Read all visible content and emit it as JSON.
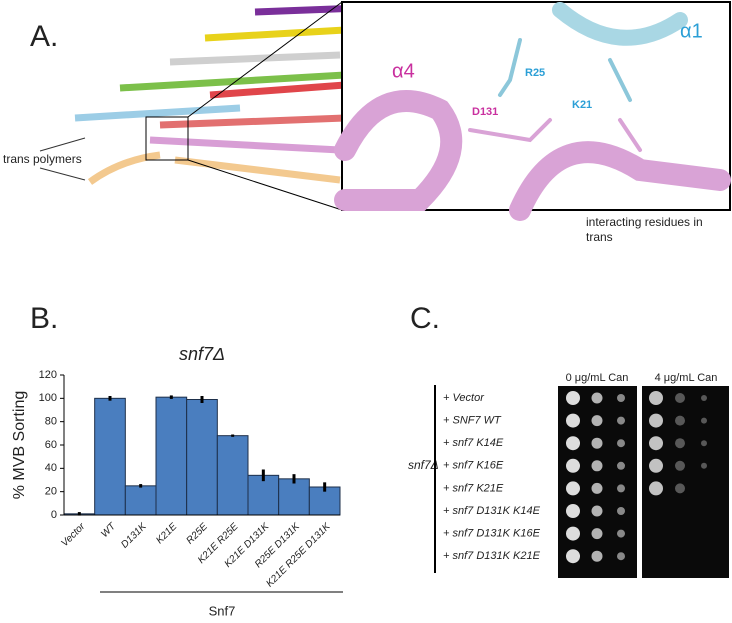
{
  "panel_a": {
    "label": "A.",
    "trans_polymers": "trans polymers",
    "alpha4": "α4",
    "d131": "D131",
    "r25": "R25",
    "alpha1": "α1",
    "k21": "K21",
    "caption": "interacting residues in trans"
  },
  "panel_b": {
    "label": "B."
  },
  "chart_data": {
    "type": "bar",
    "title": "snf7Δ",
    "y_label": "% MVB Sorting",
    "group_label": "Snf7",
    "categories": [
      "Vector",
      "WT",
      "D131K",
      "K21E",
      "R25E",
      "K21E R25E",
      "K21E D131K",
      "R25E D131K",
      "K21E R25E D131K"
    ],
    "values": [
      1,
      100,
      25,
      101,
      99,
      68,
      34,
      31,
      24
    ],
    "errors": [
      1.5,
      2,
      1.5,
      1.5,
      3,
      1,
      5,
      4,
      4
    ],
    "color": "#4a7ebf",
    "ylim": [
      0,
      120
    ],
    "yticks": [
      0,
      20,
      40,
      60,
      80,
      100,
      120
    ]
  },
  "panel_c": {
    "label": "C.",
    "strain": "snf7Δ",
    "plate_headers": [
      "0 μg/mL Can",
      "4 μg/mL Can"
    ],
    "rows": [
      "+ Vector",
      "+ SNF7 WT",
      "+ snf7 K14E",
      "+ snf7 K16E",
      "+ snf7 K21E",
      "+ snf7 D131K K14E",
      "+ snf7 D131K K16E",
      "+ snf7 D131K K21E"
    ]
  }
}
